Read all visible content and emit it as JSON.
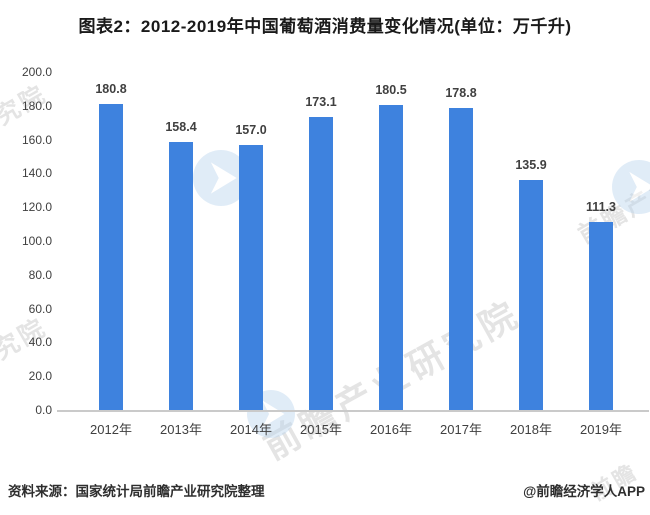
{
  "page": {
    "title": "图表2：2012-2019年中国葡萄酒消费量变化情况(单位：万千升)"
  },
  "chart_data": {
    "type": "bar",
    "title": "图表2：2012-2019年中国葡萄酒消费量变化情况(单位：万千升)",
    "categories": [
      "2012年",
      "2013年",
      "2014年",
      "2015年",
      "2016年",
      "2017年",
      "2018年",
      "2019年"
    ],
    "values": [
      180.8,
      158.4,
      157.0,
      173.1,
      180.5,
      178.8,
      135.9,
      111.3
    ],
    "unit": "万千升",
    "xlabel": "",
    "ylabel": "",
    "ylim": [
      0,
      200
    ],
    "ytick_step": 20,
    "ytick_decimals": 1,
    "value_label_decimals": 1,
    "grid": false,
    "legend": "none",
    "bar_color": "#3e82de"
  },
  "footer": {
    "source": "资料来源：国家统计局前瞻产业研究院整理",
    "credit": "@前瞻经济学人APP"
  },
  "watermarks": {
    "brand_text": "前瞻产业研究院",
    "corner_fragment": "研究院",
    "short_fragment": "前瞻"
  },
  "colors": {
    "bar": "#3e82de",
    "axis_line": "#cacaca",
    "tick_label": "#404040",
    "title": "#1a1a1a",
    "footer": "#2e2e2e",
    "watermark_logo_blue": "#bcd6ef"
  }
}
